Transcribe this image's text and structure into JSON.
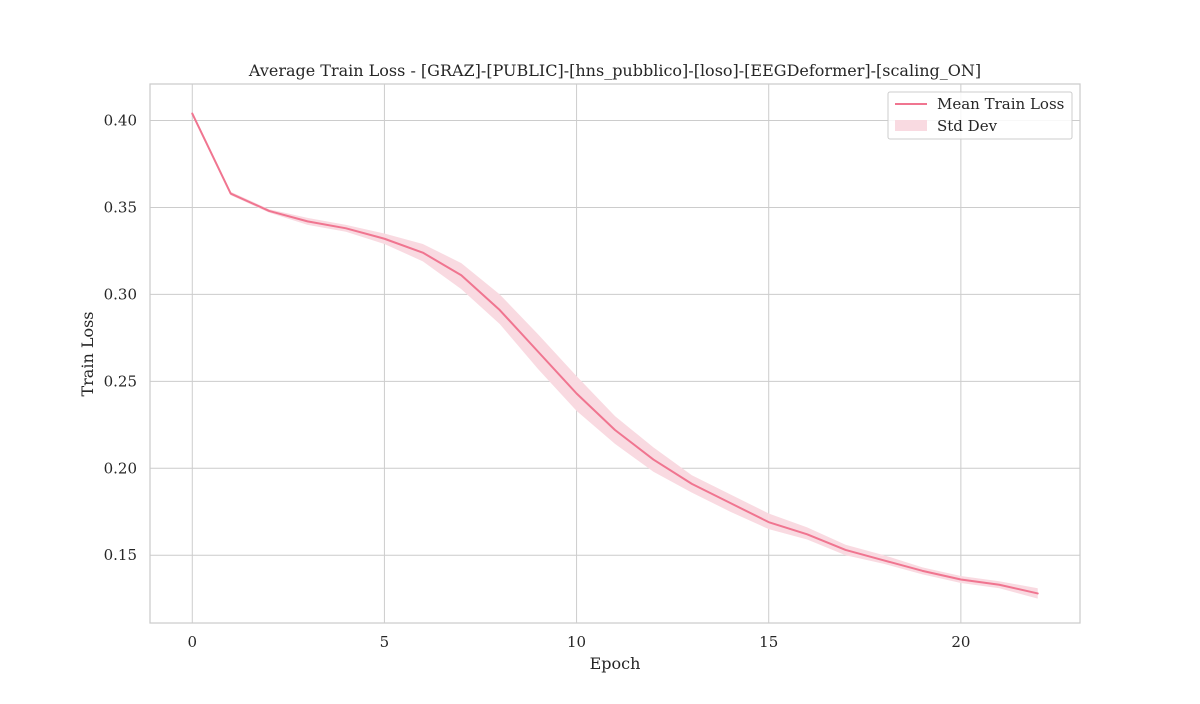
{
  "chart_data": {
    "type": "line",
    "title": "Average Train Loss - [GRAZ]-[PUBLIC]-[hns_pubblico]-[loso]-[EEGDeformer]-[scaling_ON]",
    "xlabel": "Epoch",
    "ylabel": "Train Loss",
    "xlim": [
      -1.1,
      23.1
    ],
    "ylim": [
      0.111,
      0.421
    ],
    "xticks": [
      0,
      5,
      10,
      15,
      20
    ],
    "xtick_labels": [
      "0",
      "5",
      "10",
      "15",
      "20"
    ],
    "yticks": [
      0.15,
      0.2,
      0.25,
      0.3,
      0.35,
      0.4
    ],
    "ytick_labels": [
      "0.15",
      "0.20",
      "0.25",
      "0.30",
      "0.35",
      "0.40"
    ],
    "grid": true,
    "legend_position": "top-right",
    "legend": [
      "Mean Train Loss",
      "Std Dev"
    ],
    "line_color": "#f07590",
    "band_color": "#f9dae1",
    "x": [
      0,
      1,
      2,
      3,
      4,
      5,
      6,
      7,
      8,
      9,
      10,
      11,
      12,
      13,
      14,
      15,
      16,
      17,
      18,
      19,
      20,
      21,
      22
    ],
    "series": [
      {
        "name": "Mean Train Loss",
        "values": [
          0.404,
          0.358,
          0.348,
          0.342,
          0.338,
          0.332,
          0.324,
          0.311,
          0.291,
          0.267,
          0.243,
          0.222,
          0.205,
          0.191,
          0.18,
          0.169,
          0.162,
          0.153,
          0.147,
          0.141,
          0.136,
          0.133,
          0.128
        ]
      }
    ],
    "std_band": {
      "name": "Std Dev",
      "lower": [
        0.404,
        0.357,
        0.347,
        0.34,
        0.336,
        0.329,
        0.319,
        0.303,
        0.283,
        0.257,
        0.233,
        0.214,
        0.198,
        0.186,
        0.175,
        0.165,
        0.159,
        0.15,
        0.145,
        0.139,
        0.134,
        0.131,
        0.125
      ],
      "upper": [
        0.404,
        0.359,
        0.349,
        0.344,
        0.34,
        0.335,
        0.329,
        0.318,
        0.3,
        0.277,
        0.253,
        0.23,
        0.212,
        0.196,
        0.185,
        0.174,
        0.166,
        0.156,
        0.15,
        0.143,
        0.138,
        0.135,
        0.131
      ]
    }
  }
}
